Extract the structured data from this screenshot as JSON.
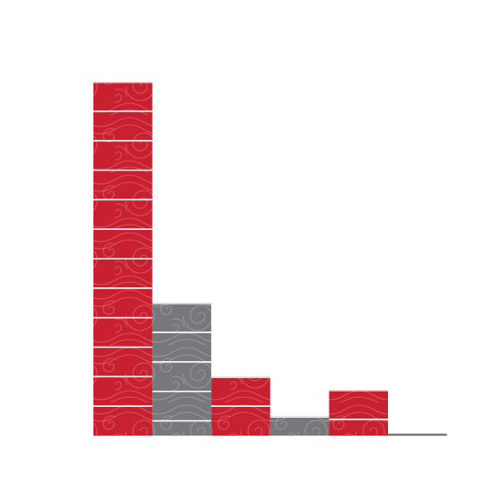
{
  "chart_data": {
    "type": "bar",
    "categories": [
      "",
      "",
      "",
      "",
      "",
      ""
    ],
    "values": [
      12,
      4.5,
      2,
      0.65,
      1.55,
      0
    ],
    "title": "",
    "xlabel": "",
    "ylabel": "",
    "ylim": [
      0,
      12
    ],
    "grid": false,
    "legend": "none",
    "bar_colors": [
      "#c8202f",
      "#77787b",
      "#c8202f",
      "#77787b",
      "#c8202f",
      "#77787b"
    ],
    "pattern": "swirl",
    "segment_divider_color": "#ffffff",
    "baseline_color": "#77787b"
  }
}
